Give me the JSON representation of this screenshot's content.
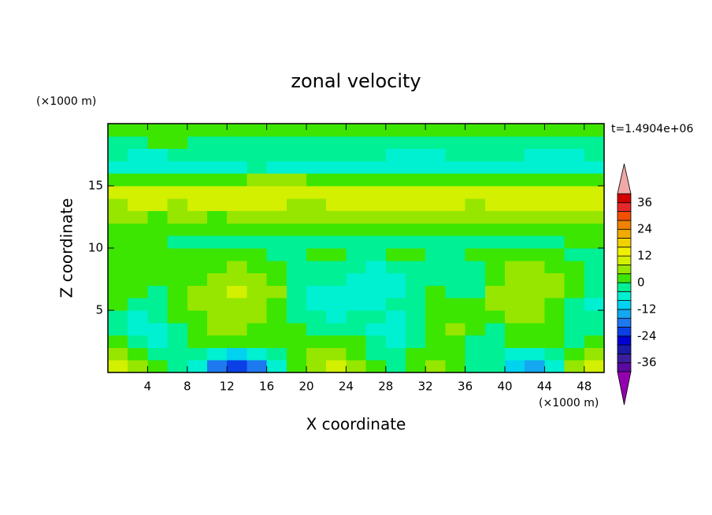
{
  "chart_data": {
    "type": "contour",
    "title": "zonal velocity",
    "x_label": "X coordinate",
    "y_label": "Z coordinate",
    "x_unit_label": "(×1000 m)",
    "y_unit_label": "(×1000 m)",
    "annotation": "t=1.4904e+06",
    "xlim": [
      0,
      50
    ],
    "ylim": [
      0,
      20
    ],
    "xticks": [
      4,
      8,
      12,
      16,
      20,
      24,
      28,
      32,
      36,
      40,
      44,
      48
    ],
    "yticks": [
      5,
      10,
      15
    ],
    "x": [
      1,
      3,
      5,
      7,
      9,
      11,
      13,
      15,
      17,
      19,
      21,
      23,
      25,
      27,
      29,
      31,
      33,
      35,
      37,
      39,
      41,
      43,
      45,
      47,
      49
    ],
    "y": [
      0.5,
      1.5,
      2.5,
      3.5,
      4.5,
      5.5,
      6.5,
      7.5,
      8.5,
      9.5,
      10.5,
      11.5,
      12.5,
      13.5,
      14.5,
      15.5,
      16.5,
      17.5,
      18.5,
      19.5
    ],
    "z": [
      [
        10,
        6,
        2,
        -2,
        -6,
        -18,
        -22,
        -18,
        -8,
        2,
        6,
        8,
        6,
        2,
        -2,
        2,
        6,
        2,
        -2,
        -4,
        -10,
        -14,
        -6,
        6,
        10
      ],
      [
        6,
        2,
        -2,
        -2,
        -2,
        -8,
        -10,
        -8,
        -2,
        2,
        6,
        6,
        2,
        -2,
        -2,
        2,
        2,
        2,
        -2,
        -2,
        -6,
        -6,
        -2,
        2,
        6
      ],
      [
        2,
        -2,
        -6,
        -2,
        2,
        2,
        2,
        2,
        2,
        2,
        2,
        2,
        2,
        -2,
        -6,
        -2,
        2,
        2,
        -2,
        -2,
        2,
        2,
        2,
        -2,
        2
      ],
      [
        -2,
        -6,
        -6,
        -2,
        2,
        6,
        6,
        2,
        2,
        2,
        -2,
        -2,
        -2,
        -6,
        -6,
        -2,
        2,
        6,
        2,
        -2,
        2,
        2,
        2,
        -2,
        -2
      ],
      [
        -2,
        -6,
        -2,
        2,
        2,
        6,
        6,
        6,
        2,
        -2,
        -2,
        -6,
        -2,
        -2,
        -6,
        -2,
        2,
        2,
        2,
        2,
        6,
        6,
        2,
        -2,
        -2
      ],
      [
        2,
        -2,
        -2,
        2,
        6,
        6,
        6,
        6,
        2,
        -2,
        -6,
        -6,
        -6,
        -6,
        -2,
        -2,
        2,
        2,
        2,
        6,
        6,
        6,
        2,
        -2,
        -6
      ],
      [
        2,
        2,
        -2,
        2,
        6,
        6,
        10,
        6,
        6,
        -2,
        -6,
        -6,
        -6,
        -6,
        -6,
        -2,
        2,
        -2,
        -2,
        6,
        6,
        6,
        6,
        2,
        -2
      ],
      [
        2,
        2,
        2,
        2,
        2,
        6,
        6,
        6,
        2,
        -2,
        -2,
        -2,
        -6,
        -6,
        -6,
        -2,
        -2,
        -2,
        -2,
        2,
        6,
        6,
        6,
        2,
        -2
      ],
      [
        2,
        2,
        2,
        2,
        2,
        2,
        6,
        2,
        2,
        -2,
        -2,
        -2,
        -2,
        -6,
        -2,
        -2,
        -2,
        -2,
        -2,
        2,
        6,
        6,
        2,
        2,
        -2
      ],
      [
        2,
        2,
        2,
        2,
        2,
        2,
        2,
        2,
        -2,
        -2,
        2,
        2,
        -2,
        -2,
        2,
        2,
        -2,
        -2,
        2,
        2,
        2,
        2,
        2,
        -2,
        -2
      ],
      [
        2,
        2,
        2,
        -2,
        -2,
        -2,
        -2,
        -2,
        -2,
        -2,
        -2,
        -2,
        -2,
        -2,
        -2,
        -2,
        -2,
        -2,
        -2,
        -2,
        -2,
        -2,
        -2,
        2,
        2
      ],
      [
        2,
        2,
        2,
        2,
        2,
        2,
        2,
        2,
        2,
        2,
        2,
        2,
        2,
        2,
        2,
        2,
        2,
        2,
        2,
        2,
        2,
        2,
        2,
        2,
        2
      ],
      [
        6,
        6,
        2,
        6,
        6,
        2,
        6,
        6,
        6,
        6,
        6,
        6,
        6,
        6,
        6,
        6,
        6,
        6,
        6,
        6,
        6,
        6,
        6,
        6,
        6
      ],
      [
        6,
        10,
        10,
        6,
        10,
        10,
        10,
        10,
        10,
        6,
        6,
        10,
        10,
        10,
        10,
        10,
        10,
        10,
        6,
        10,
        10,
        10,
        10,
        10,
        10
      ],
      [
        10,
        10,
        10,
        10,
        10,
        10,
        10,
        10,
        10,
        10,
        10,
        10,
        10,
        10,
        10,
        10,
        10,
        10,
        10,
        10,
        10,
        10,
        10,
        10,
        10
      ],
      [
        2,
        2,
        2,
        2,
        2,
        2,
        2,
        6,
        6,
        6,
        2,
        2,
        2,
        2,
        2,
        2,
        2,
        2,
        2,
        2,
        2,
        2,
        2,
        2,
        2
      ],
      [
        -6,
        -6,
        -6,
        -6,
        -6,
        -6,
        -6,
        -2,
        -6,
        -6,
        -6,
        -6,
        -6,
        -6,
        -6,
        -6,
        -6,
        -6,
        -6,
        -6,
        -6,
        -6,
        -6,
        -6,
        -6
      ],
      [
        -2,
        -6,
        -6,
        -2,
        -2,
        -2,
        -2,
        -2,
        -2,
        -2,
        -2,
        -2,
        -2,
        -2,
        -6,
        -6,
        -6,
        -2,
        -2,
        -2,
        -2,
        -6,
        -6,
        -6,
        -2
      ],
      [
        -2,
        -2,
        2,
        2,
        -2,
        -2,
        -2,
        -2,
        -2,
        -2,
        -2,
        -2,
        -2,
        -2,
        -2,
        -2,
        -2,
        -2,
        -2,
        -2,
        -2,
        -2,
        -2,
        -2,
        -2
      ],
      [
        2,
        2,
        2,
        2,
        2,
        2,
        2,
        2,
        2,
        2,
        2,
        2,
        2,
        2,
        2,
        2,
        2,
        2,
        2,
        2,
        2,
        2,
        2,
        2,
        2
      ]
    ],
    "levels": [
      -40,
      -36,
      -32,
      -28,
      -24,
      -20,
      -16,
      -12,
      -8,
      -4,
      0,
      4,
      8,
      12,
      16,
      20,
      24,
      28,
      32,
      36,
      40
    ],
    "colors": [
      "#5a0aa0",
      "#3c1e9c",
      "#1a1aa8",
      "#0000d0",
      "#0a40e6",
      "#1e78f0",
      "#14a8f0",
      "#00d2f0",
      "#00f0d2",
      "#00f096",
      "#3ce600",
      "#96e600",
      "#d2f000",
      "#f0f000",
      "#f0d200",
      "#f0aa00",
      "#f08200",
      "#f05000",
      "#e62828",
      "#d20000"
    ],
    "under_color": "#9400b0",
    "over_color": "#f0a8a8",
    "clim": [
      -40,
      40
    ],
    "cbar_ticks": [
      -36,
      -24,
      -12,
      0,
      12,
      24,
      36
    ]
  }
}
